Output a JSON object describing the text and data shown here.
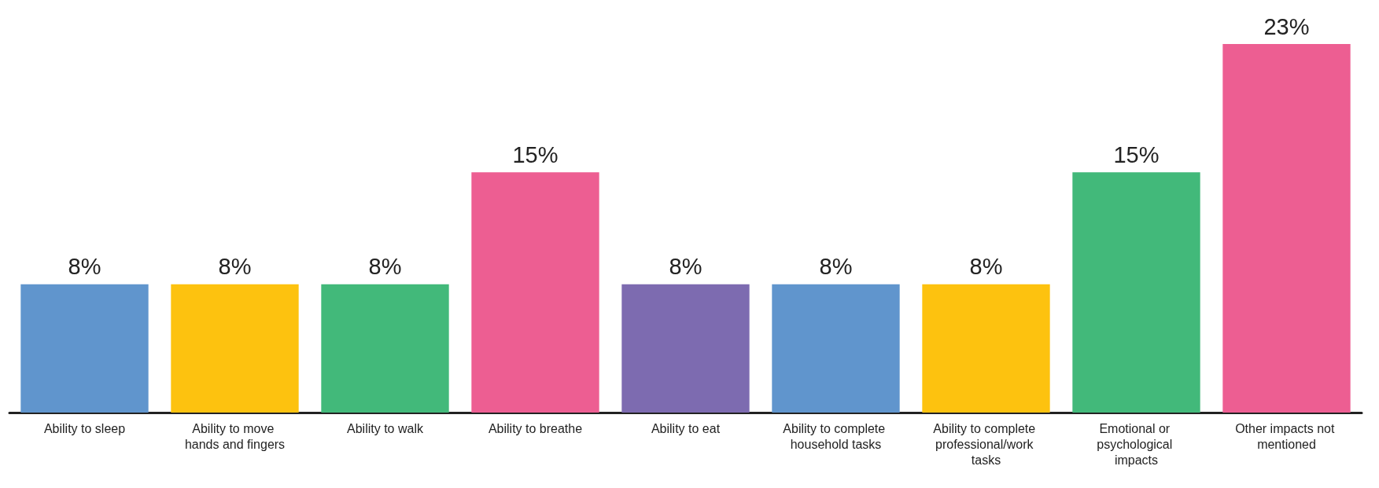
{
  "chart_data": {
    "type": "bar",
    "categories": [
      "Ability to sleep",
      "Ability to move hands and fingers",
      "Ability to walk",
      "Ability to breathe",
      "Ability to eat",
      "Ability to complete household tasks",
      "Ability to complete professional/work tasks",
      "Emotional or psychological impacts",
      "Other impacts not mentioned"
    ],
    "values": [
      8,
      8,
      8,
      15,
      8,
      8,
      8,
      15,
      23
    ],
    "colors": [
      "#6095cd",
      "#fdc20f",
      "#42b97a",
      "#ed5e92",
      "#7d6bb0",
      "#6095cd",
      "#fdc20f",
      "#42b97a",
      "#ed5e92"
    ],
    "value_labels": [
      "8%",
      "8%",
      "8%",
      "15%",
      "8%",
      "8%",
      "8%",
      "15%",
      "23%"
    ]
  }
}
